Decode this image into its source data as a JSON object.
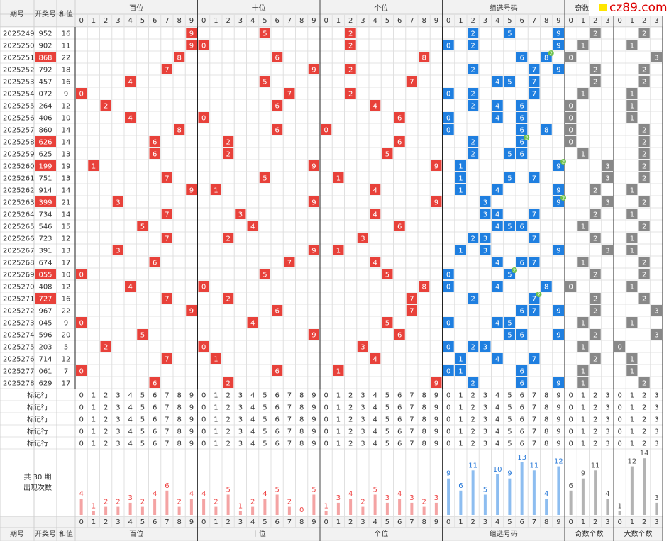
{
  "header": {
    "period": "期号",
    "number": "开奖号",
    "sum": "和值",
    "sections": [
      "百位",
      "十位",
      "个位",
      "组选号码",
      "奇数个数",
      "大数个数"
    ],
    "digits": [
      0,
      1,
      2,
      3,
      4,
      5,
      6,
      7,
      8,
      9
    ]
  },
  "logo": "cz89.com",
  "repeat_badge": 2,
  "rows": [
    {
      "period": "2025249",
      "number": "952",
      "sum": 16,
      "odd": 2,
      "big": 2
    },
    {
      "period": "2025250",
      "number": "902",
      "sum": 11,
      "odd": 1,
      "big": 1
    },
    {
      "period": "2025251",
      "number": "868",
      "sum": 22,
      "odd": 0,
      "big": 3
    },
    {
      "period": "2025252",
      "number": "792",
      "sum": 18,
      "odd": 2,
      "big": 2
    },
    {
      "period": "2025253",
      "number": "457",
      "sum": 16,
      "odd": 2,
      "big": 2
    },
    {
      "period": "2025254",
      "number": "072",
      "sum": 9,
      "odd": 1,
      "big": 1
    },
    {
      "period": "2025255",
      "number": "264",
      "sum": 12,
      "odd": 0,
      "big": 1
    },
    {
      "period": "2025256",
      "number": "406",
      "sum": 10,
      "odd": 0,
      "big": 1
    },
    {
      "period": "2025257",
      "number": "860",
      "sum": 14,
      "odd": 0,
      "big": 2
    },
    {
      "period": "2025258",
      "number": "626",
      "sum": 14,
      "odd": 0,
      "big": 2
    },
    {
      "period": "2025259",
      "number": "625",
      "sum": 13,
      "odd": 1,
      "big": 2
    },
    {
      "period": "2025260",
      "number": "199",
      "sum": 19,
      "odd": 3,
      "big": 2
    },
    {
      "period": "2025261",
      "number": "751",
      "sum": 13,
      "odd": 3,
      "big": 2
    },
    {
      "period": "2025262",
      "number": "914",
      "sum": 14,
      "odd": 2,
      "big": 1
    },
    {
      "period": "2025263",
      "number": "399",
      "sum": 21,
      "odd": 3,
      "big": 2
    },
    {
      "period": "2025264",
      "number": "734",
      "sum": 14,
      "odd": 2,
      "big": 1
    },
    {
      "period": "2025265",
      "number": "546",
      "sum": 15,
      "odd": 1,
      "big": 2
    },
    {
      "period": "2025266",
      "number": "723",
      "sum": 12,
      "odd": 2,
      "big": 1
    },
    {
      "period": "2025267",
      "number": "391",
      "sum": 13,
      "odd": 3,
      "big": 1
    },
    {
      "period": "2025268",
      "number": "674",
      "sum": 17,
      "odd": 1,
      "big": 2
    },
    {
      "period": "2025269",
      "number": "055",
      "sum": 10,
      "odd": 2,
      "big": 2
    },
    {
      "period": "2025270",
      "number": "408",
      "sum": 12,
      "odd": 0,
      "big": 1
    },
    {
      "period": "2025271",
      "number": "727",
      "sum": 16,
      "odd": 2,
      "big": 2
    },
    {
      "period": "2025272",
      "number": "967",
      "sum": 22,
      "odd": 2,
      "big": 3
    },
    {
      "period": "2025273",
      "number": "045",
      "sum": 9,
      "odd": 1,
      "big": 1
    },
    {
      "period": "2025274",
      "number": "596",
      "sum": 20,
      "odd": 2,
      "big": 3
    },
    {
      "period": "2025275",
      "number": "203",
      "sum": 5,
      "odd": 1,
      "big": 0
    },
    {
      "period": "2025276",
      "number": "714",
      "sum": 12,
      "odd": 2,
      "big": 1
    },
    {
      "period": "2025277",
      "number": "061",
      "sum": 7,
      "odd": 1,
      "big": 1
    },
    {
      "period": "2025278",
      "number": "629",
      "sum": 17,
      "odd": 1,
      "big": 2
    }
  ],
  "marker_labels": [
    "标记行",
    "标记行",
    "标记行",
    "标记行",
    "标记行"
  ],
  "stats": {
    "title": "共 30 期",
    "subtitle": "出现次数",
    "counts": [
      [
        4,
        1,
        2,
        2,
        3,
        2,
        4,
        6,
        2,
        4
      ],
      [
        4,
        2,
        5,
        1,
        2,
        4,
        5,
        2,
        0,
        5
      ],
      [
        1,
        3,
        4,
        2,
        5,
        3,
        4,
        3,
        2,
        3
      ],
      [
        9,
        6,
        11,
        5,
        10,
        9,
        13,
        11,
        4,
        12
      ],
      [
        6,
        9,
        11,
        4
      ],
      [
        1,
        12,
        14,
        3
      ]
    ]
  }
}
